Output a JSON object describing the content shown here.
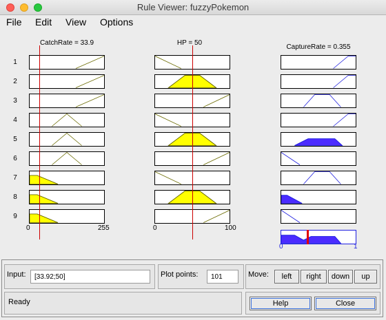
{
  "window": {
    "title": "Rule Viewer: fuzzyPokemon"
  },
  "menu": [
    {
      "label": "File"
    },
    {
      "label": "Edit"
    },
    {
      "label": "View"
    },
    {
      "label": "Options"
    }
  ],
  "columns": {
    "catch_rate": {
      "title": "CatchRate = 33.9",
      "min": 0,
      "max": 255,
      "value": 33.9,
      "tick_min": "0",
      "tick_max": "255"
    },
    "hp": {
      "title": "HP = 50",
      "min": 0,
      "max": 100,
      "value": 50,
      "tick_min": "0",
      "tick_max": "100"
    },
    "capture_rate": {
      "title": "CaptureRate = 0.355",
      "min": 0,
      "max": 1,
      "value": 0.355,
      "tick_min": "0",
      "tick_max": "1"
    }
  },
  "rules": [
    {
      "num": "1",
      "catch": "high",
      "hp": "low",
      "out": "high",
      "catch_fire": 0,
      "hp_fire": 0,
      "out_fire": 0
    },
    {
      "num": "2",
      "catch": "high",
      "hp": "mid",
      "out": "high",
      "catch_fire": 0,
      "hp_fire": 1,
      "out_fire": 0
    },
    {
      "num": "3",
      "catch": "high",
      "hp": "high",
      "out": "mid",
      "catch_fire": 0,
      "hp_fire": 0,
      "out_fire": 0
    },
    {
      "num": "4",
      "catch": "mid",
      "hp": "low",
      "out": "high",
      "catch_fire": 0,
      "hp_fire": 0,
      "out_fire": 0
    },
    {
      "num": "5",
      "catch": "mid",
      "hp": "mid",
      "out": "mid",
      "catch_fire": 0,
      "hp_fire": 1,
      "out_fire": 1
    },
    {
      "num": "6",
      "catch": "mid",
      "hp": "high",
      "out": "low",
      "catch_fire": 0,
      "hp_fire": 0,
      "out_fire": 0
    },
    {
      "num": "7",
      "catch": "low",
      "hp": "low",
      "out": "mid",
      "catch_fire": 1,
      "hp_fire": 0,
      "out_fire": 0
    },
    {
      "num": "8",
      "catch": "low",
      "hp": "mid",
      "out": "low",
      "catch_fire": 1,
      "hp_fire": 1,
      "out_fire": 1
    },
    {
      "num": "9",
      "catch": "low",
      "hp": "high",
      "out": "low",
      "catch_fire": 1,
      "hp_fire": 0,
      "out_fire": 0
    }
  ],
  "bottom": {
    "input_label": "Input:",
    "input_value": "[33.92;50]",
    "plot_points_label": "Plot points:",
    "plot_points_value": "101",
    "move_label": "Move:",
    "move_buttons": [
      "left",
      "right",
      "down",
      "up"
    ],
    "status": "Ready",
    "help_label": "Help",
    "close_label": "Close"
  },
  "colors": {
    "fired_fill": "#ffff00",
    "output_fill": "#4b2bff",
    "marker": "#cc0000"
  }
}
